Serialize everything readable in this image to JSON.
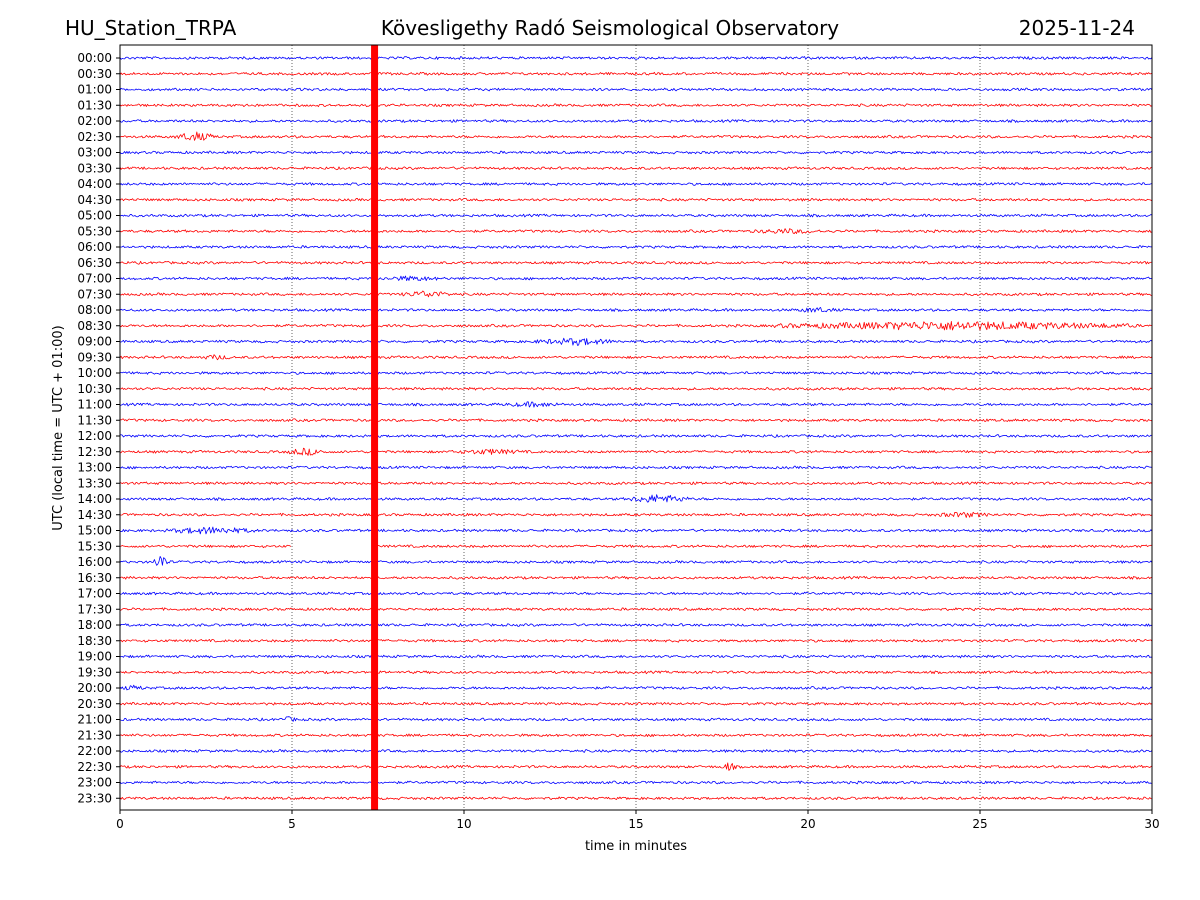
{
  "header": {
    "station": "HU_Station_TRPA",
    "observatory": "Kövesligethy Radó Seismological Observatory",
    "date": "2025-11-24"
  },
  "chart_data": {
    "type": "line",
    "title": "Kövesligethy Radó Seismological Observatory",
    "xlabel": "time in minutes",
    "ylabel": "UTC (local time = UTC + 01:00)",
    "xlim": [
      0,
      30
    ],
    "x_ticks": [
      0,
      5,
      10,
      15,
      20,
      25,
      30
    ],
    "x_tick_labels": [
      "0",
      "5",
      "10",
      "15",
      "20",
      "25",
      "30"
    ],
    "grid": "vertical-dotted",
    "colors": {
      "even_rows": "#0000ff",
      "odd_rows": "#ff0000",
      "marker": "#ff0000"
    },
    "rows": [
      "00:00",
      "00:30",
      "01:00",
      "01:30",
      "02:00",
      "02:30",
      "03:00",
      "03:30",
      "04:00",
      "04:30",
      "05:00",
      "05:30",
      "06:00",
      "06:30",
      "07:00",
      "07:30",
      "08:00",
      "08:30",
      "09:00",
      "09:30",
      "10:00",
      "10:30",
      "11:00",
      "11:30",
      "12:00",
      "12:30",
      "13:00",
      "13:30",
      "14:00",
      "14:30",
      "15:00",
      "15:30",
      "16:00",
      "16:30",
      "17:00",
      "17:30",
      "18:00",
      "18:30",
      "19:00",
      "19:30",
      "20:00",
      "20:30",
      "21:00",
      "21:30",
      "22:00",
      "22:30",
      "23:00",
      "23:30"
    ],
    "marker_minute": 7.4,
    "gaps": [
      {
        "row": "15:30",
        "start": 5.0,
        "end": 7.3
      }
    ],
    "events": [
      {
        "row": "01:30",
        "start": 3.3,
        "end": 3.8,
        "amp": 3
      },
      {
        "row": "02:30",
        "start": 1.6,
        "end": 2.8,
        "amp": 5
      },
      {
        "row": "05:30",
        "start": 18.2,
        "end": 20.5,
        "amp": 3
      },
      {
        "row": "07:00",
        "start": 7.5,
        "end": 9.5,
        "amp": 3
      },
      {
        "row": "07:30",
        "start": 8.2,
        "end": 9.6,
        "amp": 4
      },
      {
        "row": "08:00",
        "start": 19.5,
        "end": 21.0,
        "amp": 3
      },
      {
        "row": "08:30",
        "start": 19.0,
        "end": 29.5,
        "amp": 5
      },
      {
        "row": "09:00",
        "start": 12.0,
        "end": 14.5,
        "amp": 4
      },
      {
        "row": "09:30",
        "start": 2.3,
        "end": 3.3,
        "amp": 3
      },
      {
        "row": "11:00",
        "start": 11.0,
        "end": 13.0,
        "amp": 3
      },
      {
        "row": "12:30",
        "start": 4.8,
        "end": 6.0,
        "amp": 4
      },
      {
        "row": "12:30",
        "start": 9.5,
        "end": 12.0,
        "amp": 3
      },
      {
        "row": "14:00",
        "start": 14.8,
        "end": 16.5,
        "amp": 5
      },
      {
        "row": "14:30",
        "start": 23.5,
        "end": 25.5,
        "amp": 3
      },
      {
        "row": "15:00",
        "start": 1.3,
        "end": 4.0,
        "amp": 4
      },
      {
        "row": "16:00",
        "start": 1.0,
        "end": 1.4,
        "amp": 9
      },
      {
        "row": "20:00",
        "start": 0.0,
        "end": 0.8,
        "amp": 3
      },
      {
        "row": "21:00",
        "start": 4.6,
        "end": 5.2,
        "amp": 3
      },
      {
        "row": "22:30",
        "start": 17.5,
        "end": 17.9,
        "amp": 5
      }
    ]
  }
}
